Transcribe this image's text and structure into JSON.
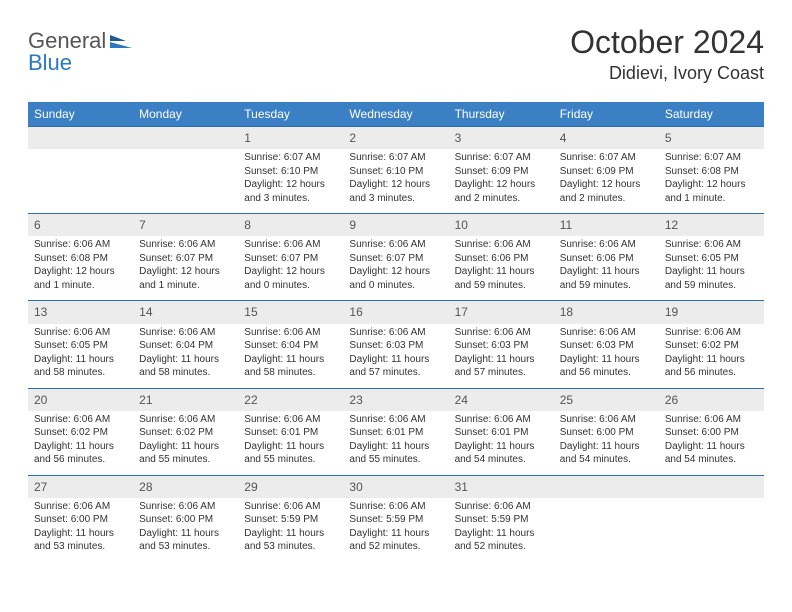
{
  "brand": {
    "word1": "General",
    "word2": "Blue",
    "color_general": "#555555",
    "color_blue": "#2a78c2"
  },
  "title": {
    "month_year": "October 2024",
    "location": "Didievi, Ivory Coast"
  },
  "colors": {
    "header_bg": "#3b7fc4",
    "header_text": "#ffffff",
    "daynum_bg": "#ececec",
    "row_divider": "#2f6fa8",
    "body_text": "#333333",
    "page_bg": "#ffffff"
  },
  "typography": {
    "title_fontsize": 32,
    "location_fontsize": 18,
    "weekday_fontsize": 12,
    "daynum_fontsize": 12,
    "body_fontsize": 10
  },
  "weekdays": [
    "Sunday",
    "Monday",
    "Tuesday",
    "Wednesday",
    "Thursday",
    "Friday",
    "Saturday"
  ],
  "weeks": [
    [
      {
        "num": "",
        "sunrise": "",
        "sunset": "",
        "daylight": ""
      },
      {
        "num": "",
        "sunrise": "",
        "sunset": "",
        "daylight": ""
      },
      {
        "num": "1",
        "sunrise": "Sunrise: 6:07 AM",
        "sunset": "Sunset: 6:10 PM",
        "daylight": "Daylight: 12 hours and 3 minutes."
      },
      {
        "num": "2",
        "sunrise": "Sunrise: 6:07 AM",
        "sunset": "Sunset: 6:10 PM",
        "daylight": "Daylight: 12 hours and 3 minutes."
      },
      {
        "num": "3",
        "sunrise": "Sunrise: 6:07 AM",
        "sunset": "Sunset: 6:09 PM",
        "daylight": "Daylight: 12 hours and 2 minutes."
      },
      {
        "num": "4",
        "sunrise": "Sunrise: 6:07 AM",
        "sunset": "Sunset: 6:09 PM",
        "daylight": "Daylight: 12 hours and 2 minutes."
      },
      {
        "num": "5",
        "sunrise": "Sunrise: 6:07 AM",
        "sunset": "Sunset: 6:08 PM",
        "daylight": "Daylight: 12 hours and 1 minute."
      }
    ],
    [
      {
        "num": "6",
        "sunrise": "Sunrise: 6:06 AM",
        "sunset": "Sunset: 6:08 PM",
        "daylight": "Daylight: 12 hours and 1 minute."
      },
      {
        "num": "7",
        "sunrise": "Sunrise: 6:06 AM",
        "sunset": "Sunset: 6:07 PM",
        "daylight": "Daylight: 12 hours and 1 minute."
      },
      {
        "num": "8",
        "sunrise": "Sunrise: 6:06 AM",
        "sunset": "Sunset: 6:07 PM",
        "daylight": "Daylight: 12 hours and 0 minutes."
      },
      {
        "num": "9",
        "sunrise": "Sunrise: 6:06 AM",
        "sunset": "Sunset: 6:07 PM",
        "daylight": "Daylight: 12 hours and 0 minutes."
      },
      {
        "num": "10",
        "sunrise": "Sunrise: 6:06 AM",
        "sunset": "Sunset: 6:06 PM",
        "daylight": "Daylight: 11 hours and 59 minutes."
      },
      {
        "num": "11",
        "sunrise": "Sunrise: 6:06 AM",
        "sunset": "Sunset: 6:06 PM",
        "daylight": "Daylight: 11 hours and 59 minutes."
      },
      {
        "num": "12",
        "sunrise": "Sunrise: 6:06 AM",
        "sunset": "Sunset: 6:05 PM",
        "daylight": "Daylight: 11 hours and 59 minutes."
      }
    ],
    [
      {
        "num": "13",
        "sunrise": "Sunrise: 6:06 AM",
        "sunset": "Sunset: 6:05 PM",
        "daylight": "Daylight: 11 hours and 58 minutes."
      },
      {
        "num": "14",
        "sunrise": "Sunrise: 6:06 AM",
        "sunset": "Sunset: 6:04 PM",
        "daylight": "Daylight: 11 hours and 58 minutes."
      },
      {
        "num": "15",
        "sunrise": "Sunrise: 6:06 AM",
        "sunset": "Sunset: 6:04 PM",
        "daylight": "Daylight: 11 hours and 58 minutes."
      },
      {
        "num": "16",
        "sunrise": "Sunrise: 6:06 AM",
        "sunset": "Sunset: 6:03 PM",
        "daylight": "Daylight: 11 hours and 57 minutes."
      },
      {
        "num": "17",
        "sunrise": "Sunrise: 6:06 AM",
        "sunset": "Sunset: 6:03 PM",
        "daylight": "Daylight: 11 hours and 57 minutes."
      },
      {
        "num": "18",
        "sunrise": "Sunrise: 6:06 AM",
        "sunset": "Sunset: 6:03 PM",
        "daylight": "Daylight: 11 hours and 56 minutes."
      },
      {
        "num": "19",
        "sunrise": "Sunrise: 6:06 AM",
        "sunset": "Sunset: 6:02 PM",
        "daylight": "Daylight: 11 hours and 56 minutes."
      }
    ],
    [
      {
        "num": "20",
        "sunrise": "Sunrise: 6:06 AM",
        "sunset": "Sunset: 6:02 PM",
        "daylight": "Daylight: 11 hours and 56 minutes."
      },
      {
        "num": "21",
        "sunrise": "Sunrise: 6:06 AM",
        "sunset": "Sunset: 6:02 PM",
        "daylight": "Daylight: 11 hours and 55 minutes."
      },
      {
        "num": "22",
        "sunrise": "Sunrise: 6:06 AM",
        "sunset": "Sunset: 6:01 PM",
        "daylight": "Daylight: 11 hours and 55 minutes."
      },
      {
        "num": "23",
        "sunrise": "Sunrise: 6:06 AM",
        "sunset": "Sunset: 6:01 PM",
        "daylight": "Daylight: 11 hours and 55 minutes."
      },
      {
        "num": "24",
        "sunrise": "Sunrise: 6:06 AM",
        "sunset": "Sunset: 6:01 PM",
        "daylight": "Daylight: 11 hours and 54 minutes."
      },
      {
        "num": "25",
        "sunrise": "Sunrise: 6:06 AM",
        "sunset": "Sunset: 6:00 PM",
        "daylight": "Daylight: 11 hours and 54 minutes."
      },
      {
        "num": "26",
        "sunrise": "Sunrise: 6:06 AM",
        "sunset": "Sunset: 6:00 PM",
        "daylight": "Daylight: 11 hours and 54 minutes."
      }
    ],
    [
      {
        "num": "27",
        "sunrise": "Sunrise: 6:06 AM",
        "sunset": "Sunset: 6:00 PM",
        "daylight": "Daylight: 11 hours and 53 minutes."
      },
      {
        "num": "28",
        "sunrise": "Sunrise: 6:06 AM",
        "sunset": "Sunset: 6:00 PM",
        "daylight": "Daylight: 11 hours and 53 minutes."
      },
      {
        "num": "29",
        "sunrise": "Sunrise: 6:06 AM",
        "sunset": "Sunset: 5:59 PM",
        "daylight": "Daylight: 11 hours and 53 minutes."
      },
      {
        "num": "30",
        "sunrise": "Sunrise: 6:06 AM",
        "sunset": "Sunset: 5:59 PM",
        "daylight": "Daylight: 11 hours and 52 minutes."
      },
      {
        "num": "31",
        "sunrise": "Sunrise: 6:06 AM",
        "sunset": "Sunset: 5:59 PM",
        "daylight": "Daylight: 11 hours and 52 minutes."
      },
      {
        "num": "",
        "sunrise": "",
        "sunset": "",
        "daylight": ""
      },
      {
        "num": "",
        "sunrise": "",
        "sunset": "",
        "daylight": ""
      }
    ]
  ]
}
